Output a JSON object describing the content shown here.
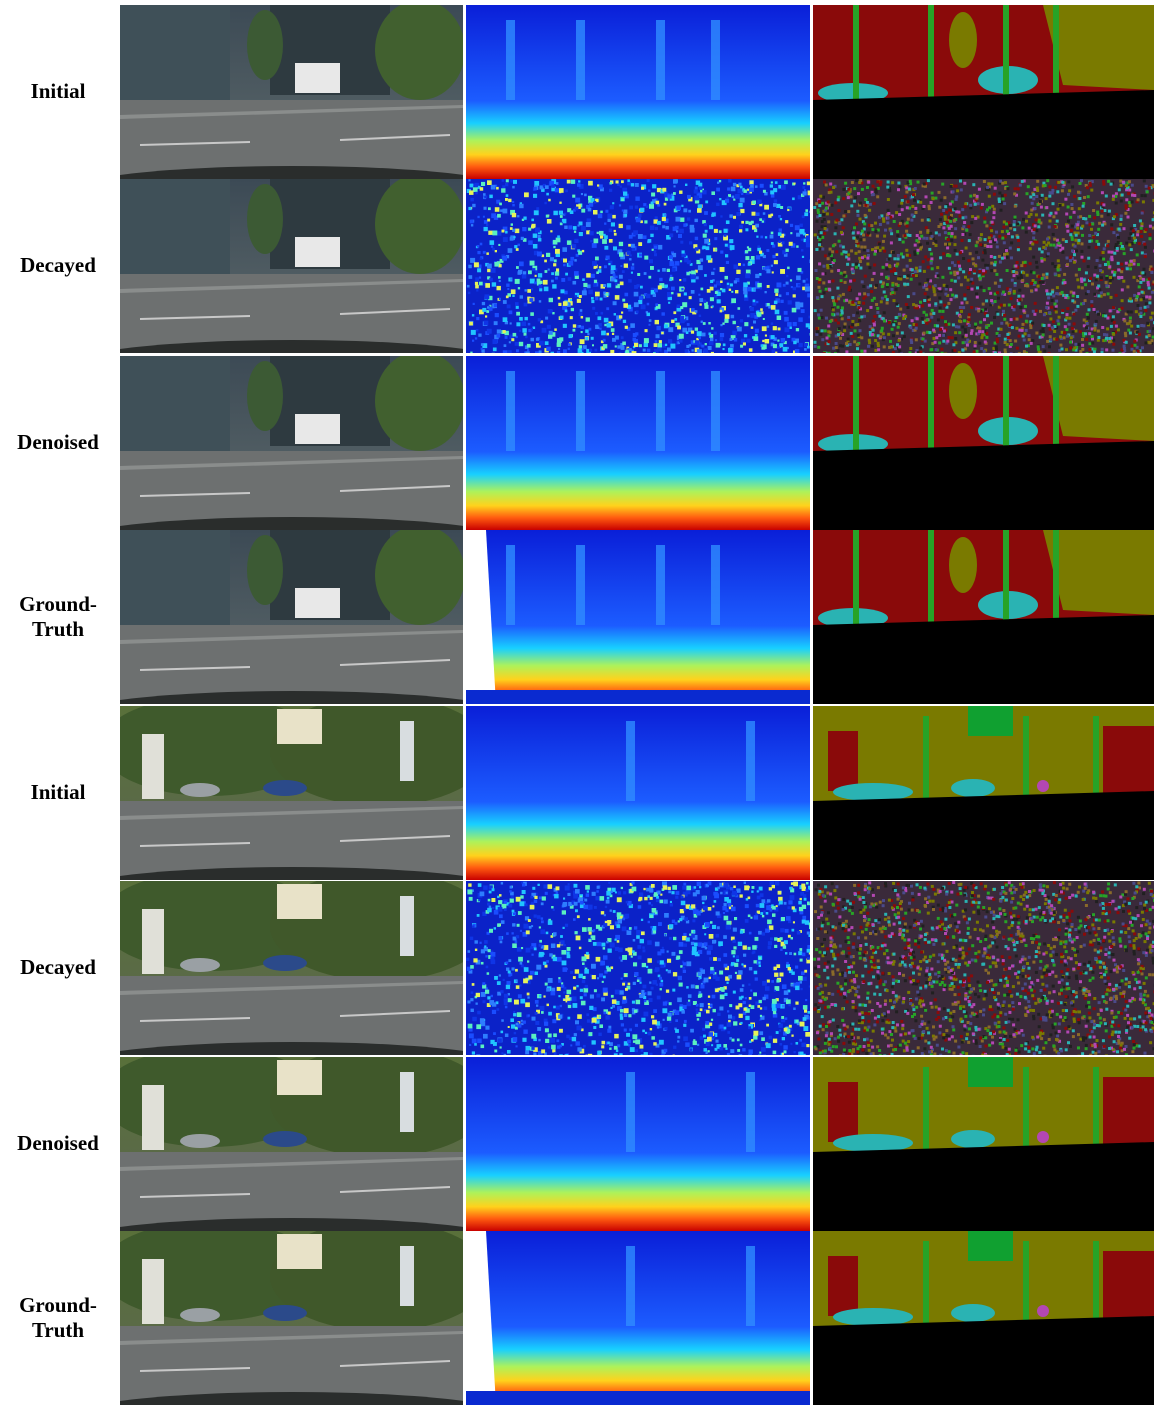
{
  "figure": {
    "rows": [
      {
        "label": "Initial",
        "scene": "a",
        "depth": "smooth",
        "seg": "smooth"
      },
      {
        "label": "Decayed",
        "scene": "a",
        "depth": "noise",
        "seg": "noise"
      },
      {
        "label": "Denoised",
        "scene": "a",
        "depth": "smooth",
        "seg": "smooth"
      },
      {
        "label": "Ground-\nTruth",
        "scene": "a",
        "depth": "gt",
        "seg": "gt"
      },
      {
        "label": "Initial",
        "scene": "b",
        "depth": "smooth",
        "seg": "smooth"
      },
      {
        "label": "Decayed",
        "scene": "b",
        "depth": "noise",
        "seg": "noise"
      },
      {
        "label": "Denoised",
        "scene": "b",
        "depth": "smooth",
        "seg": "smooth"
      },
      {
        "label": "Ground-\nTruth",
        "scene": "b",
        "depth": "gt",
        "seg": "gt"
      }
    ]
  },
  "colors": {
    "seg_building": "#8a0a0a",
    "seg_vegetation": "#7a7a00",
    "seg_car": "#2ab3b3",
    "seg_pole": "#27a327",
    "seg_road": "#000000",
    "seg_sign": "#b347b3",
    "depth_far": "#1a3cff",
    "depth_near": "#cc0000"
  }
}
